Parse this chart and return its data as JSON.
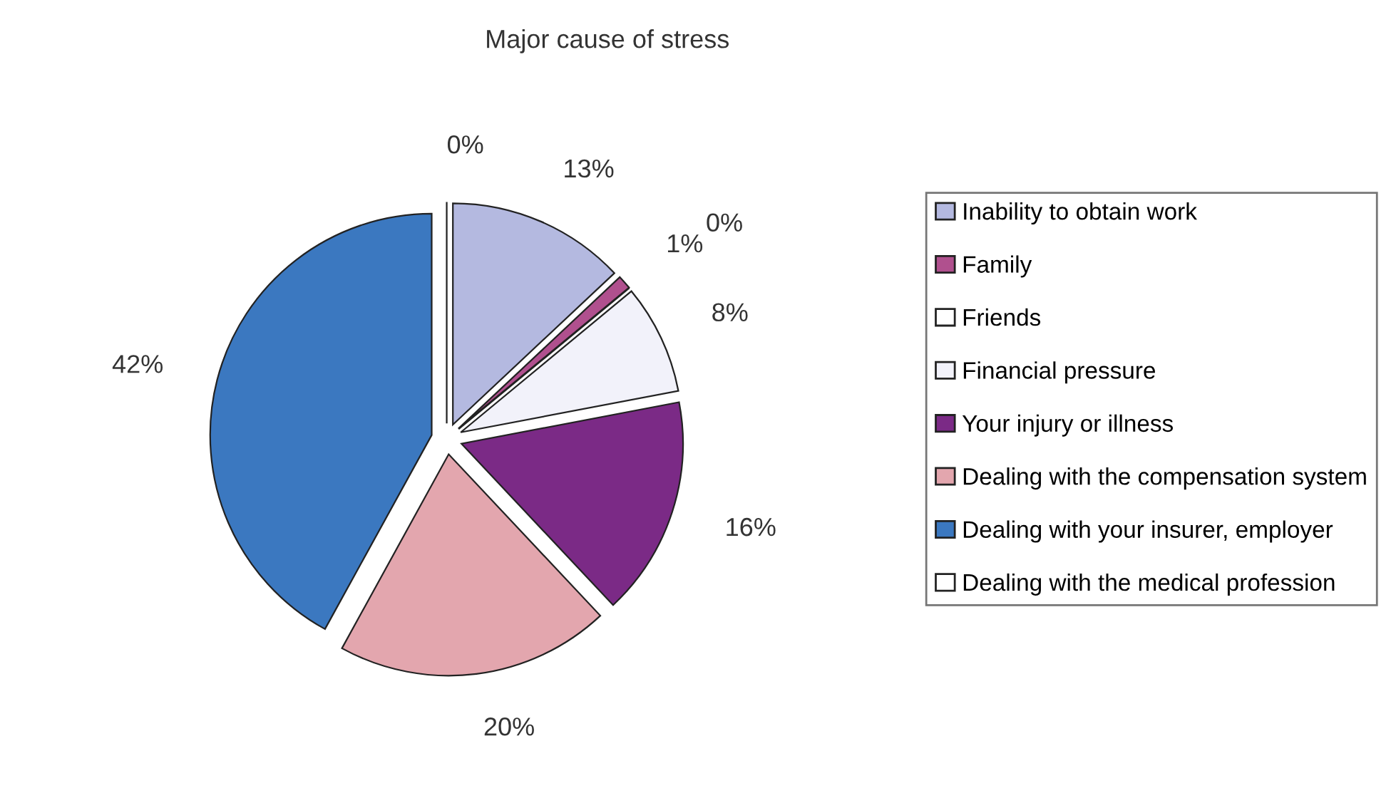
{
  "chart_data": {
    "type": "pie",
    "title": "Major cause of stress",
    "categories": [
      "Inability to obtain work",
      "Family",
      "Friends",
      "Financial pressure",
      "Your injury or illness",
      "Dealing with the compensation system",
      "Dealing with your insurer, employer",
      "Dealing with the medical profession"
    ],
    "values": [
      13,
      1,
      0,
      8,
      16,
      20,
      42,
      0
    ],
    "value_labels": [
      "13%",
      "1%",
      "0%",
      "8%",
      "16%",
      "20%",
      "42%",
      "0%"
    ],
    "colors": [
      "#b4b9e0",
      "#b0508e",
      "#ffffff",
      "#f2f2fa",
      "#7b2a86",
      "#e3a6ae",
      "#3b78c0",
      "#ffffff"
    ],
    "legend": "right"
  }
}
